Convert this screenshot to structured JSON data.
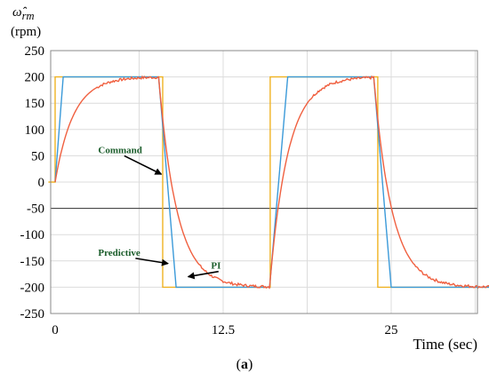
{
  "chart_data": {
    "type": "line",
    "ylabel_symbol": "ω̂",
    "ylabel_subscript": "rm",
    "ylabel_unit": "(rpm)",
    "xlabel": "Time (sec)",
    "caption_open": "(",
    "caption_letter": "a",
    "caption_close": ")",
    "xlim": [
      0,
      32.5
    ],
    "ylim": [
      -250,
      250
    ],
    "y_ticks": [
      250,
      200,
      150,
      100,
      50,
      0,
      -50,
      -100,
      -150,
      -200,
      -250
    ],
    "x_ticks": [
      0,
      12.5,
      25
    ],
    "x_tick_labels": [
      "0",
      "12.5",
      "25"
    ],
    "grid": true,
    "reference_line_y": -50,
    "series": [
      {
        "name": "Command",
        "color": "#f0b323",
        "points": [
          [
            -0.5,
            0
          ],
          [
            0,
            0
          ],
          [
            0,
            200
          ],
          [
            8,
            200
          ],
          [
            8,
            -200
          ],
          [
            16,
            -200
          ],
          [
            16,
            200
          ],
          [
            24,
            200
          ],
          [
            24,
            -200
          ],
          [
            32.5,
            -200
          ]
        ]
      },
      {
        "name": "Predictive",
        "color": "#3b9ad9",
        "points": [
          [
            0,
            0
          ],
          [
            0.6,
            200
          ],
          [
            7.7,
            200
          ],
          [
            9.0,
            -200
          ],
          [
            15.95,
            -200
          ],
          [
            17.3,
            200
          ],
          [
            23.7,
            200
          ],
          [
            25.0,
            -200
          ],
          [
            32.5,
            -200
          ]
        ]
      },
      {
        "name": "PI",
        "color": "#f06040",
        "segments": [
          {
            "t0": 0,
            "t1": 7.7,
            "start": 0,
            "target": 200,
            "tau": 1.35
          },
          {
            "t0": 7.7,
            "t1": 15.95,
            "start": 200,
            "target": -200,
            "tau": 1.35
          },
          {
            "t0": 15.95,
            "t1": 23.7,
            "start": -200,
            "target": 200,
            "tau": 1.35
          },
          {
            "t0": 23.7,
            "t1": 32.5,
            "start": 200,
            "target": -200,
            "tau": 1.35
          }
        ]
      }
    ],
    "annotations": [
      {
        "text": "Command",
        "tx": 3.2,
        "ty": 55,
        "ax": 7.9,
        "ay": 15
      },
      {
        "text": "Predictive",
        "tx": 3.2,
        "ty": -140,
        "ax": 8.4,
        "ay": -155
      },
      {
        "text": "PI",
        "tx": 11.6,
        "ty": -165,
        "ax": 9.9,
        "ay": -180
      }
    ]
  }
}
